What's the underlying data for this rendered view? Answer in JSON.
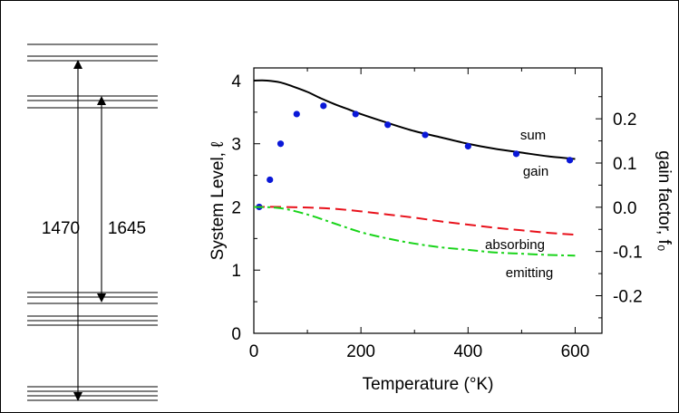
{
  "chart_data": [
    {
      "type": "diagram",
      "transitions": [
        {
          "label": "1470",
          "from": "upper-manifold-top",
          "to": "ground-manifold-bottom"
        },
        {
          "label": "1645",
          "from": "upper-manifold-bottom",
          "to": "ground-manifold-top"
        }
      ]
    },
    {
      "type": "line",
      "xlabel": "Temperature (°K)",
      "ylabel": "System Level, ℓ",
      "ylabel_right": "gain factor, f₀",
      "xlim": [
        0,
        650
      ],
      "ylim": [
        0,
        4.2
      ],
      "ylim_right": [
        -0.285,
        0.315
      ],
      "x_ticks": [
        0,
        200,
        400,
        600
      ],
      "y_ticks": [
        0,
        1,
        2,
        3,
        4
      ],
      "y_right_ticks": [
        -0.2,
        -0.1,
        0.0,
        0.1,
        0.2
      ],
      "x_tick_labels": [
        "0",
        "200",
        "400",
        "600"
      ],
      "y_tick_labels": [
        "0",
        "1",
        "2",
        "3",
        "4"
      ],
      "y_right_tick_labels": [
        "-0.2",
        "-0.1",
        "0.0",
        "0.1",
        "0.2"
      ],
      "series": [
        {
          "name": "sum",
          "style": "solid",
          "color": "#000000",
          "x": [
            0,
            25,
            50,
            75,
            100,
            125,
            150,
            175,
            200,
            250,
            300,
            350,
            400,
            450,
            500,
            550,
            600
          ],
          "y": [
            4.0,
            4.0,
            3.97,
            3.9,
            3.82,
            3.72,
            3.63,
            3.55,
            3.47,
            3.33,
            3.2,
            3.1,
            3.0,
            2.92,
            2.86,
            2.8,
            2.76
          ]
        },
        {
          "name": "gain",
          "style": "points",
          "color": "#0a18d8",
          "x": [
            10,
            30,
            50,
            80,
            130,
            190,
            250,
            320,
            400,
            490,
            590
          ],
          "y": [
            2.0,
            2.43,
            3.0,
            3.47,
            3.6,
            3.47,
            3.3,
            3.14,
            2.96,
            2.84,
            2.74
          ]
        },
        {
          "name": "absorbing",
          "style": "dashed",
          "color": "#e8111b",
          "x": [
            0,
            50,
            100,
            150,
            200,
            250,
            300,
            350,
            400,
            450,
            500,
            550,
            600
          ],
          "y": [
            2.0,
            2.0,
            1.99,
            1.97,
            1.93,
            1.88,
            1.83,
            1.77,
            1.72,
            1.67,
            1.63,
            1.59,
            1.56
          ]
        },
        {
          "name": "emitting",
          "style": "dashdot",
          "color": "#19d41a",
          "x": [
            0,
            50,
            100,
            150,
            200,
            250,
            300,
            350,
            400,
            450,
            500,
            550,
            600
          ],
          "y": [
            2.0,
            1.98,
            1.88,
            1.74,
            1.6,
            1.5,
            1.42,
            1.36,
            1.32,
            1.28,
            1.26,
            1.24,
            1.23
          ]
        }
      ]
    }
  ]
}
